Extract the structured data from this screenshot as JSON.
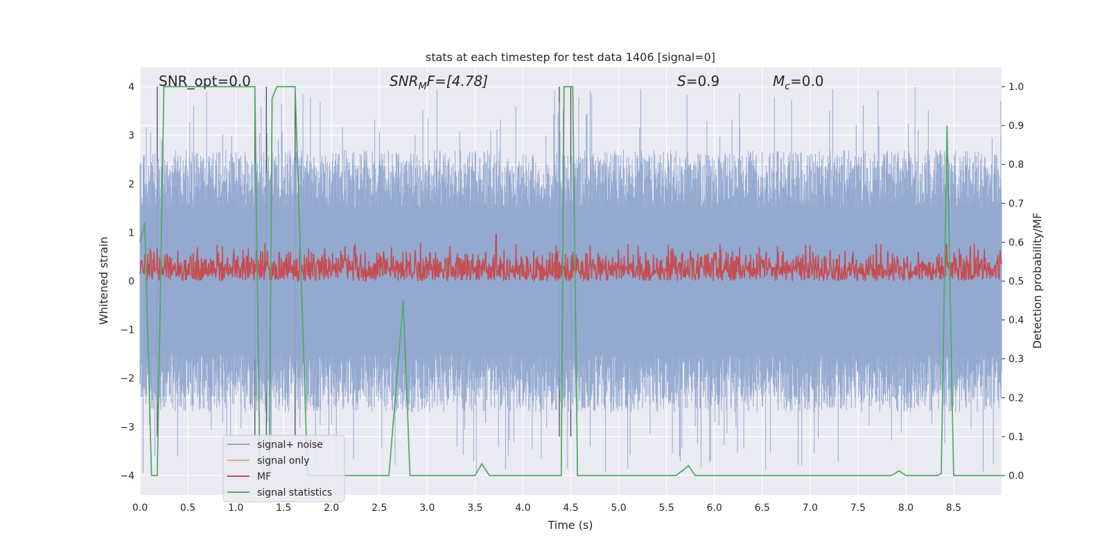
{
  "chart_data": {
    "type": "line",
    "title": "stats at each timestep for test data 1406 [signal=0]",
    "xlabel": "Time (s)",
    "ylabel": "Whitened strain",
    "ylabel_right": "Detection probability/MF",
    "xlim": [
      0.0,
      9.0
    ],
    "ylim": [
      -4.4,
      4.4
    ],
    "ylim_right": [
      -0.05,
      1.05
    ],
    "xticks": [
      0.0,
      0.5,
      1.0,
      1.5,
      2.0,
      2.5,
      3.0,
      3.5,
      4.0,
      4.5,
      5.0,
      5.5,
      6.0,
      6.5,
      7.0,
      7.5,
      8.0,
      8.5
    ],
    "xtick_labels": [
      "0.0",
      "0.5",
      "1.0",
      "1.5",
      "2.0",
      "2.5",
      "3.0",
      "3.5",
      "4.0",
      "4.5",
      "5.0",
      "5.5",
      "6.0",
      "6.5",
      "7.0",
      "7.5",
      "8.0",
      "8.5"
    ],
    "yticks": [
      -4,
      -3,
      -2,
      -1,
      0,
      1,
      2,
      3,
      4
    ],
    "ytick_labels": [
      "−4",
      "−3",
      "−2",
      "−1",
      "0",
      "1",
      "2",
      "3",
      "4"
    ],
    "yticks_right": [
      0.0,
      0.1,
      0.2,
      0.3,
      0.4,
      0.5,
      0.6,
      0.7,
      0.8,
      0.9,
      1.0
    ],
    "ytick_labels_right": [
      "0.0",
      "0.1",
      "0.2",
      "0.3",
      "0.4",
      "0.5",
      "0.6",
      "0.7",
      "0.8",
      "0.9",
      "1.0"
    ],
    "grid": true,
    "legend_position": "lower-left",
    "annotations": {
      "snr_opt": "SNR_opt=0.0",
      "snr_mf_main": "SNR",
      "snr_mf_sub": "M",
      "snr_mf_rest": "F=[4.78]",
      "s_stat_var": "S",
      "s_stat_rest": "=0.9",
      "mc_var": "M",
      "mc_sub": "c",
      "mc_rest": "=0.0"
    },
    "vertical_lines_x": [
      0.18,
      1.2,
      1.32,
      1.62,
      4.38,
      4.5
    ],
    "series": [
      {
        "name": "signal+ noise",
        "color": "#8fa5cd",
        "axis": "left",
        "kind": "noise",
        "x_range": [
          0.0,
          9.0
        ],
        "envelope_upper": 2.7,
        "envelope_lower": -2.7,
        "max_peak": 4.0,
        "min_peak": -4.0
      },
      {
        "name": "signal only",
        "color": "#e8a686",
        "axis": "left",
        "values": []
      },
      {
        "name": "MF",
        "color": "#c44e52",
        "axis": "right",
        "kind": "noise",
        "x_range": [
          0.0,
          9.0
        ],
        "baseline": 0.5,
        "typical_max": 0.59,
        "peak": 0.62
      },
      {
        "name": "signal statistics",
        "color": "#55a868",
        "axis": "right",
        "points": [
          [
            0.0,
            0.6
          ],
          [
            0.05,
            0.65
          ],
          [
            0.12,
            0.0
          ],
          [
            0.18,
            0.0
          ],
          [
            0.25,
            1.0
          ],
          [
            1.2,
            1.0
          ],
          [
            1.25,
            0.05
          ],
          [
            1.3,
            0.0
          ],
          [
            1.35,
            0.0
          ],
          [
            1.38,
            0.97
          ],
          [
            1.43,
            1.0
          ],
          [
            1.62,
            1.0
          ],
          [
            1.75,
            0.0
          ],
          [
            2.6,
            0.0
          ],
          [
            2.75,
            0.45
          ],
          [
            2.82,
            0.0
          ],
          [
            3.5,
            0.0
          ],
          [
            3.57,
            0.03
          ],
          [
            3.65,
            0.0
          ],
          [
            4.35,
            0.0
          ],
          [
            4.4,
            0.0
          ],
          [
            4.43,
            1.0
          ],
          [
            4.52,
            1.0
          ],
          [
            4.57,
            0.0
          ],
          [
            5.6,
            0.0
          ],
          [
            5.73,
            0.025
          ],
          [
            5.8,
            0.0
          ],
          [
            7.85,
            0.0
          ],
          [
            7.93,
            0.012
          ],
          [
            8.0,
            0.0
          ],
          [
            8.33,
            0.0
          ],
          [
            8.37,
            0.005
          ],
          [
            8.43,
            0.9
          ],
          [
            8.5,
            0.0
          ],
          [
            9.0,
            0.0
          ]
        ]
      }
    ]
  }
}
